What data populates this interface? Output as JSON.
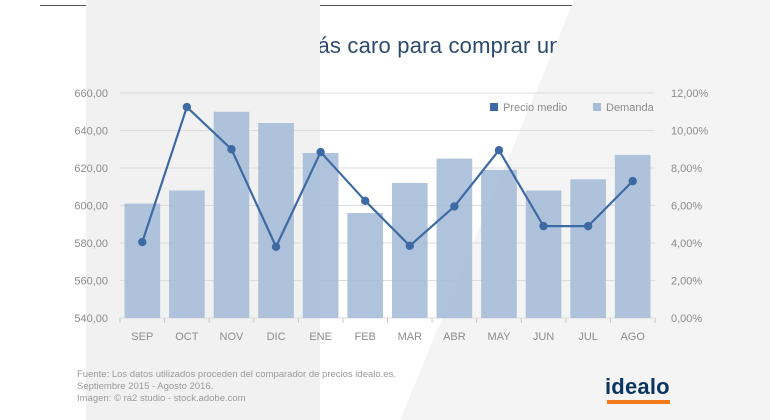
{
  "chart_data": {
    "type": "bar+line",
    "title": "Octubre, el mes más caro para comprar un portátil",
    "categories": [
      "SEP",
      "OCT",
      "NOV",
      "DIC",
      "ENE",
      "FEB",
      "MAR",
      "ABR",
      "MAY",
      "JUN",
      "JUL",
      "AGO"
    ],
    "left_axis": {
      "range": [
        540,
        660
      ],
      "ticks": [
        540,
        560,
        580,
        600,
        620,
        640,
        660
      ],
      "tick_labels": [
        "540,00",
        "560,00",
        "580,00",
        "600,00",
        "620,00",
        "640,00",
        "660,00"
      ]
    },
    "right_axis": {
      "range": [
        0,
        12
      ],
      "ticks": [
        0,
        2,
        4,
        6,
        8,
        10,
        12
      ],
      "tick_labels": [
        "0,00%",
        "2,00%",
        "4,00%",
        "6,00%",
        "8,00%",
        "10,00%",
        "12,00%"
      ]
    },
    "grid": true,
    "legend_position": "top-right",
    "series": [
      {
        "name": "Precio medio",
        "kind": "line",
        "axis": "left",
        "color": "#3e6aa3",
        "values": [
          580.5,
          652.5,
          630,
          578,
          628.5,
          602.5,
          578.5,
          599.5,
          629.5,
          589,
          589,
          613
        ]
      },
      {
        "name": "Demanda",
        "kind": "bar",
        "axis": "right",
        "color": "#a7bcd8",
        "values": [
          6.1,
          6.8,
          11.0,
          10.4,
          8.8,
          5.6,
          7.2,
          8.5,
          7.9,
          6.8,
          7.4,
          8.7
        ]
      }
    ]
  },
  "footer": {
    "line1": "Fuente: Los datos utilizados proceden del comparador de precios idealo.es.",
    "line2": "Septiembre 2015 - Agosto 2016.",
    "line3": "Imagen: © ra2 studio - stock.adobe.com"
  },
  "logo": {
    "text": "idealo",
    "text_color": "#0a3761",
    "accent_color": "#f27a1a"
  }
}
